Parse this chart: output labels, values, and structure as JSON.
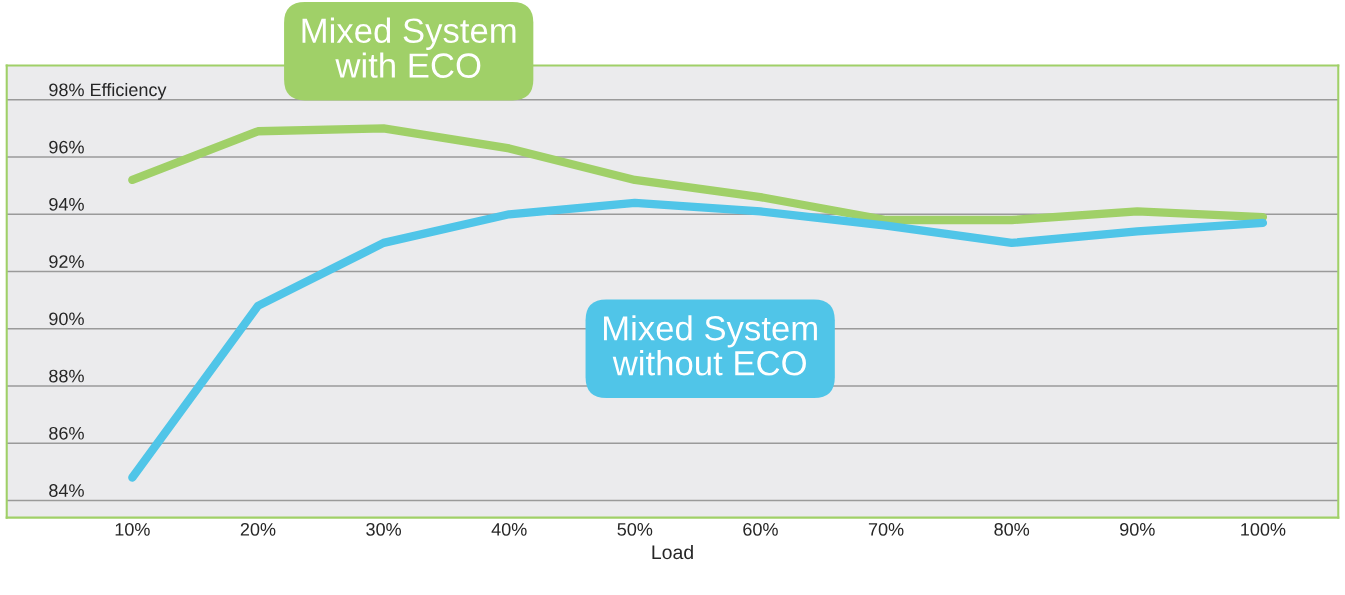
{
  "chart_data": {
    "type": "line",
    "xlabel": "Load",
    "categories": [
      "10%",
      "20%",
      "30%",
      "40%",
      "50%",
      "60%",
      "70%",
      "80%",
      "90%",
      "100%"
    ],
    "series": [
      {
        "name": "Mixed System\nwith ECO",
        "color": "#a0d068",
        "values": [
          95.2,
          96.9,
          97.0,
          96.3,
          95.2,
          94.6,
          93.8,
          93.8,
          94.1,
          93.9
        ]
      },
      {
        "name": "Mixed System\nwithout ECO",
        "color": "#50c5e8",
        "values": [
          84.8,
          90.8,
          93.0,
          94.0,
          94.4,
          94.1,
          93.6,
          93.0,
          93.4,
          93.7
        ]
      }
    ],
    "ylim": [
      83.4,
      99.2
    ],
    "yticks": [
      {
        "value": 84,
        "label": "84%"
      },
      {
        "value": 86,
        "label": "86%"
      },
      {
        "value": 88,
        "label": "88%"
      },
      {
        "value": 90,
        "label": "90%"
      },
      {
        "value": 92,
        "label": "92%"
      },
      {
        "value": 94,
        "label": "94%"
      },
      {
        "value": 96,
        "label": "96%"
      },
      {
        "value": 98,
        "label": "98% Efficiency"
      }
    ],
    "grid": "y",
    "legend": false,
    "marker": "none",
    "line_style": "solid"
  }
}
